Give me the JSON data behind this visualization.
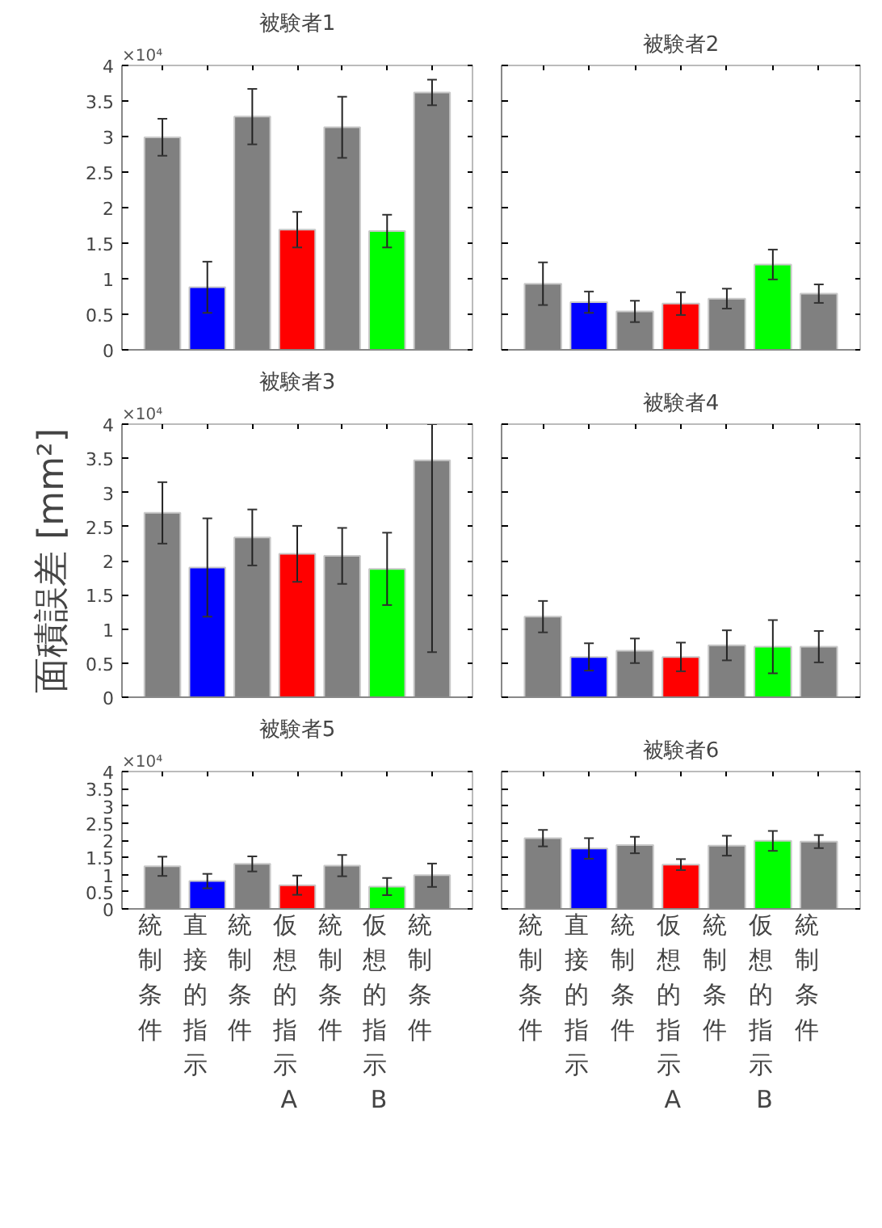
{
  "chart_data": [
    {
      "type": "bar",
      "title": "被験者1",
      "categories": [
        "統制条件",
        "直接的指示",
        "統制条件",
        "仮想的指示A",
        "統制条件",
        "仮想的指示B",
        "統制条件"
      ],
      "values": [
        2.99,
        0.88,
        3.28,
        1.69,
        3.13,
        1.67,
        3.62
      ],
      "errors": [
        0.26,
        0.36,
        0.39,
        0.25,
        0.43,
        0.23,
        0.18
      ],
      "colors": [
        "#808080",
        "#0000ff",
        "#808080",
        "#ff0000",
        "#808080",
        "#00ff00",
        "#808080"
      ],
      "ylim": [
        0,
        4
      ],
      "yticks": [
        0,
        0.5,
        1,
        1.5,
        2,
        2.5,
        3,
        3.5,
        4
      ],
      "tick_labels": "y",
      "annotations": [
        "×10⁴"
      ]
    },
    {
      "type": "bar",
      "title": "被験者2",
      "categories": [
        "統制条件",
        "直接的指示",
        "統制条件",
        "仮想的指示A",
        "統制条件",
        "仮想的指示B",
        "統制条件"
      ],
      "values": [
        0.93,
        0.67,
        0.54,
        0.65,
        0.72,
        1.2,
        0.79
      ],
      "errors": [
        0.3,
        0.15,
        0.15,
        0.16,
        0.14,
        0.21,
        0.13
      ],
      "colors": [
        "#808080",
        "#0000ff",
        "#808080",
        "#ff0000",
        "#808080",
        "#00ff00",
        "#808080"
      ],
      "ylim": [
        0,
        4
      ],
      "yticks": [
        0,
        0.5,
        1,
        1.5,
        2,
        2.5,
        3,
        3.5,
        4
      ],
      "tick_labels": false
    },
    {
      "type": "bar",
      "title": "被験者3",
      "ylabel": "面積誤差 [mm²]",
      "categories": [
        "統制条件",
        "直接的指示",
        "統制条件",
        "仮想的指示A",
        "統制条件",
        "仮想的指示B",
        "統制条件"
      ],
      "values": [
        2.7,
        1.9,
        2.34,
        2.1,
        2.07,
        1.88,
        3.47
      ],
      "errors": [
        0.45,
        0.72,
        0.41,
        0.41,
        0.41,
        0.53,
        [
          0.66,
          4
        ]
      ],
      "colors": [
        "#808080",
        "#0000ff",
        "#808080",
        "#ff0000",
        "#808080",
        "#00ff00",
        "#808080"
      ],
      "ylim": [
        0,
        4
      ],
      "yticks": [
        0,
        0.5,
        1,
        1.5,
        2,
        2.5,
        3,
        3.5,
        4
      ],
      "tick_labels": "y",
      "annotations": [
        "×10⁴"
      ]
    },
    {
      "type": "bar",
      "title": "被験者4",
      "categories": [
        "統制条件",
        "直接的指示",
        "統制条件",
        "仮想的指示A",
        "統制条件",
        "仮想的指示B",
        "統制条件"
      ],
      "values": [
        1.18,
        0.59,
        0.68,
        0.59,
        0.76,
        0.74,
        0.74
      ],
      "errors": [
        0.23,
        0.2,
        0.18,
        0.21,
        0.22,
        0.39,
        0.23
      ],
      "colors": [
        "#808080",
        "#0000ff",
        "#808080",
        "#ff0000",
        "#808080",
        "#00ff00",
        "#808080"
      ],
      "ylim": [
        0,
        4
      ],
      "yticks": [
        0,
        0.5,
        1,
        1.5,
        2,
        2.5,
        3,
        3.5,
        4
      ],
      "tick_labels": false
    },
    {
      "type": "bar",
      "title": "被験者5",
      "categories": [
        "統制条件",
        "直接的指示",
        "統制条件",
        "仮想的指示A",
        "統制条件",
        "仮想的指示B",
        "統制条件"
      ],
      "values": [
        1.24,
        0.81,
        1.31,
        0.69,
        1.26,
        0.65,
        0.98
      ],
      "errors": [
        0.28,
        0.21,
        0.22,
        0.28,
        0.31,
        0.25,
        0.34
      ],
      "colors": [
        "#808080",
        "#0000ff",
        "#808080",
        "#ff0000",
        "#808080",
        "#00ff00",
        "#808080"
      ],
      "ylim": [
        0,
        4
      ],
      "yticks": [
        0,
        0.5,
        1,
        1.5,
        2,
        2.5,
        3,
        3.5,
        4
      ],
      "annotations": [
        "×10⁴"
      ]
    },
    {
      "type": "bar",
      "title": "被験者6",
      "categories": [
        "統制条件",
        "直接的指示",
        "統制条件",
        "仮想的指示A",
        "統制条件",
        "仮想的指示B",
        "統制条件"
      ],
      "values": [
        2.06,
        1.76,
        1.86,
        1.29,
        1.84,
        1.98,
        1.96
      ],
      "errors": [
        0.24,
        0.3,
        0.24,
        0.16,
        0.29,
        0.29,
        0.19
      ],
      "colors": [
        "#808080",
        "#0000ff",
        "#808080",
        "#ff0000",
        "#808080",
        "#00ff00",
        "#808080"
      ],
      "ylim": [
        0,
        4
      ],
      "yticks": [
        0,
        0.5,
        1,
        1.5,
        2,
        2.5,
        3,
        3.5,
        4
      ],
      "tick_labels": "x"
    }
  ]
}
